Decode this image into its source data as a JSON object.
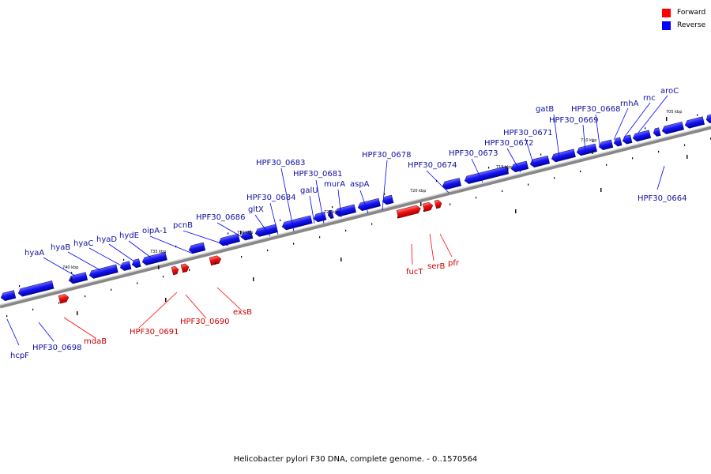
{
  "title": "Helicobacter pylori F30 DNA, complete genome. - 0..1570564",
  "legend": [
    {
      "label": "Forward",
      "color": "#ff0000"
    },
    {
      "label": "Reverse",
      "color": "#0000ff"
    }
  ],
  "colors": {
    "forward": "#e00000",
    "reverse": "#1010f0",
    "forward_text": "#cc0000",
    "reverse_text": "#1010a0"
  },
  "ticks": [
    "740 kbp",
    "735 kbp",
    "730 kbp",
    "725 kbp",
    "720 kbp",
    "715 kbp",
    "710 kbp",
    "705 kbp"
  ],
  "reverse_labels": [
    "hcpF",
    "HPF30_0698",
    "hyaA",
    "hyaB",
    "hyaC",
    "hyaD",
    "hydE",
    "oipA-1",
    "pcnB",
    "HPF30_0686",
    "gltX",
    "HPF30_0684",
    "HPF30_0683",
    "HPF30_0681",
    "galU",
    "murA",
    "aspA",
    "HPF30_0678",
    "HPF30_0674",
    "HPF30_0673",
    "HPF30_0672",
    "HPF30_0671",
    "gatB",
    "HPF30_0669",
    "HPF30_0668",
    "rnhA",
    "rnc",
    "aroC",
    "HPF30_0664"
  ],
  "forward_labels": [
    "mdaB",
    "HPF30_0691",
    "HPF30_0690",
    "exsB",
    "fucT",
    "serB",
    "pfr"
  ]
}
